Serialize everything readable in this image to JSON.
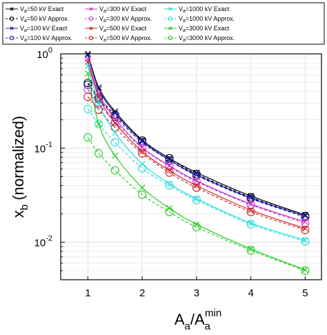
{
  "chart_data": {
    "type": "line",
    "title": "",
    "xlabel": {
      "base": "A",
      "base_sub": "a",
      "sep": "/",
      "base2": "A",
      "base2_sub": "a",
      "sup": "min"
    },
    "ylabel": {
      "base": "x",
      "sub": "b",
      "rest": " (normalized)"
    },
    "xlim": [
      0.5,
      5.3
    ],
    "ylim": [
      0.004,
      1
    ],
    "yscale": "log",
    "grid": true,
    "x_ticks": [
      1,
      2,
      3,
      4,
      5
    ],
    "x_tick_labels": [
      "1",
      "2",
      "3",
      "4",
      "5"
    ],
    "y_ticks": [
      {
        "value": 1,
        "base": "10",
        "exp": "0"
      },
      {
        "value": 0.1,
        "base": "10",
        "exp": "-1"
      },
      {
        "value": 0.01,
        "base": "10",
        "exp": "-2"
      }
    ],
    "x": [
      1,
      1.2,
      1.5,
      2,
      2.5,
      3,
      4,
      5
    ],
    "series": [
      {
        "name": "V_a=50 kV Exact",
        "legend_main": "V",
        "legend_sub": "a",
        "legend_rest": "=50 kV Exact",
        "color": "#000000",
        "style": "solid",
        "marker": "x",
        "values": [
          1.0,
          0.44,
          0.245,
          0.122,
          0.078,
          0.055,
          0.031,
          0.0195
        ]
      },
      {
        "name": "V_a=50 kV Approx.",
        "legend_main": "V",
        "legend_sub": "a",
        "legend_rest": "=50 kV Approx.",
        "color": "#000000",
        "style": "dashed",
        "marker": "o",
        "values": [
          0.49,
          0.345,
          0.225,
          0.12,
          0.078,
          0.053,
          0.03,
          0.019
        ]
      },
      {
        "name": "V_a=100 kV Exact",
        "legend_main": "V",
        "legend_sub": "a",
        "legend_rest": "=100 kV Exact",
        "color": "#1f1fb0",
        "style": "solid",
        "marker": "x",
        "values": [
          0.97,
          0.42,
          0.235,
          0.118,
          0.075,
          0.052,
          0.0295,
          0.019
        ]
      },
      {
        "name": "V_a=100 kV Approx.",
        "legend_main": "V",
        "legend_sub": "a",
        "legend_rest": "=100 kV Approx.",
        "color": "#1f1fb0",
        "style": "dashed",
        "marker": "o",
        "values": [
          0.47,
          0.33,
          0.215,
          0.115,
          0.074,
          0.051,
          0.029,
          0.0185
        ]
      },
      {
        "name": "V_a=300 kV Exact",
        "legend_main": "V",
        "legend_sub": "a",
        "legend_rest": "=300 kV Exact",
        "color": "#cc33cc",
        "style": "solid",
        "marker": "x",
        "values": [
          0.88,
          0.38,
          0.205,
          0.102,
          0.065,
          0.045,
          0.0255,
          0.0165
        ]
      },
      {
        "name": "V_a=300 kV Approx.",
        "legend_main": "V",
        "legend_sub": "a",
        "legend_rest": "=300 kV Approx.",
        "color": "#cc33cc",
        "style": "dashed",
        "marker": "o",
        "values": [
          0.42,
          0.295,
          0.19,
          0.1,
          0.064,
          0.044,
          0.025,
          0.016
        ]
      },
      {
        "name": "V_a=500 kV Exact",
        "legend_main": "V",
        "legend_sub": "a",
        "legend_rest": "=500 kV Exact",
        "color": "#cc2222",
        "style": "solid",
        "marker": "x",
        "values": [
          0.82,
          0.35,
          0.185,
          0.092,
          0.058,
          0.04,
          0.022,
          0.014
        ]
      },
      {
        "name": "V_a=500 kV Approx.",
        "legend_main": "V",
        "legend_sub": "a",
        "legend_rest": "=500 kV Approx.",
        "color": "#cc2222",
        "style": "dashed",
        "marker": "o",
        "values": [
          0.35,
          0.255,
          0.165,
          0.088,
          0.055,
          0.038,
          0.021,
          0.0135
        ]
      },
      {
        "name": "V_a=1000 kV Exact",
        "legend_main": "V",
        "legend_sub": "a",
        "legend_rest": "=1000 kV Exact",
        "color": "#22dddd",
        "style": "solid",
        "marker": "x",
        "values": [
          0.75,
          0.3,
          0.145,
          0.068,
          0.042,
          0.029,
          0.016,
          0.0105
        ]
      },
      {
        "name": "V_a=1000 kV Approx.",
        "legend_main": "V",
        "legend_sub": "a",
        "legend_rest": "=1000 kV Approx.",
        "color": "#22dddd",
        "style": "dashed",
        "marker": "o",
        "values": [
          0.26,
          0.18,
          0.115,
          0.061,
          0.04,
          0.028,
          0.0155,
          0.0102
        ]
      },
      {
        "name": "V_a=3000 kV Exact",
        "legend_main": "V",
        "legend_sub": "a",
        "legend_rest": "=3000 kV Exact",
        "color": "#22cc22",
        "style": "solid",
        "marker": "x",
        "values": [
          0.62,
          0.18,
          0.083,
          0.038,
          0.023,
          0.0155,
          0.0085,
          0.0051
        ]
      },
      {
        "name": "V_a=3000 kV Approx.",
        "legend_main": "V",
        "legend_sub": "a",
        "legend_rest": "=3000 kV Approx.",
        "color": "#22cc22",
        "style": "dashed",
        "marker": "o",
        "values": [
          0.13,
          0.088,
          0.058,
          0.032,
          0.021,
          0.0145,
          0.0082,
          0.005
        ]
      }
    ]
  }
}
